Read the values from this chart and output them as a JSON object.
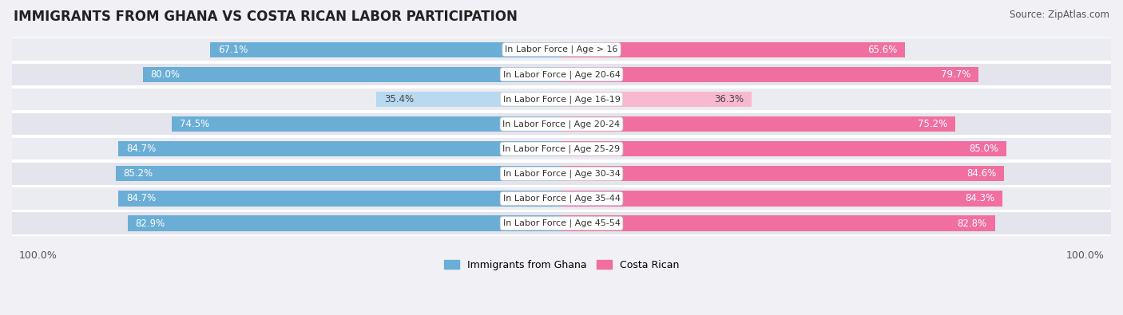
{
  "title": "IMMIGRANTS FROM GHANA VS COSTA RICAN LABOR PARTICIPATION",
  "source": "Source: ZipAtlas.com",
  "categories": [
    "In Labor Force | Age > 16",
    "In Labor Force | Age 20-64",
    "In Labor Force | Age 16-19",
    "In Labor Force | Age 20-24",
    "In Labor Force | Age 25-29",
    "In Labor Force | Age 30-34",
    "In Labor Force | Age 35-44",
    "In Labor Force | Age 45-54"
  ],
  "ghana_values": [
    67.1,
    80.0,
    35.4,
    74.5,
    84.7,
    85.2,
    84.7,
    82.9
  ],
  "costarican_values": [
    65.6,
    79.7,
    36.3,
    75.2,
    85.0,
    84.6,
    84.3,
    82.8
  ],
  "ghana_color": "#6aaed6",
  "ghana_color_light": "#b8d9ef",
  "costarican_color": "#f06fa0",
  "costarican_color_light": "#f8b8d0",
  "label_ghana": "Immigrants from Ghana",
  "label_costarican": "Costa Rican",
  "background_color": "#f0f0f5",
  "row_bg_even": "#ebebf2",
  "row_bg_odd": "#e4e4ed",
  "title_fontsize": 12,
  "source_fontsize": 8.5,
  "bar_label_fontsize": 8.5,
  "category_fontsize": 8
}
